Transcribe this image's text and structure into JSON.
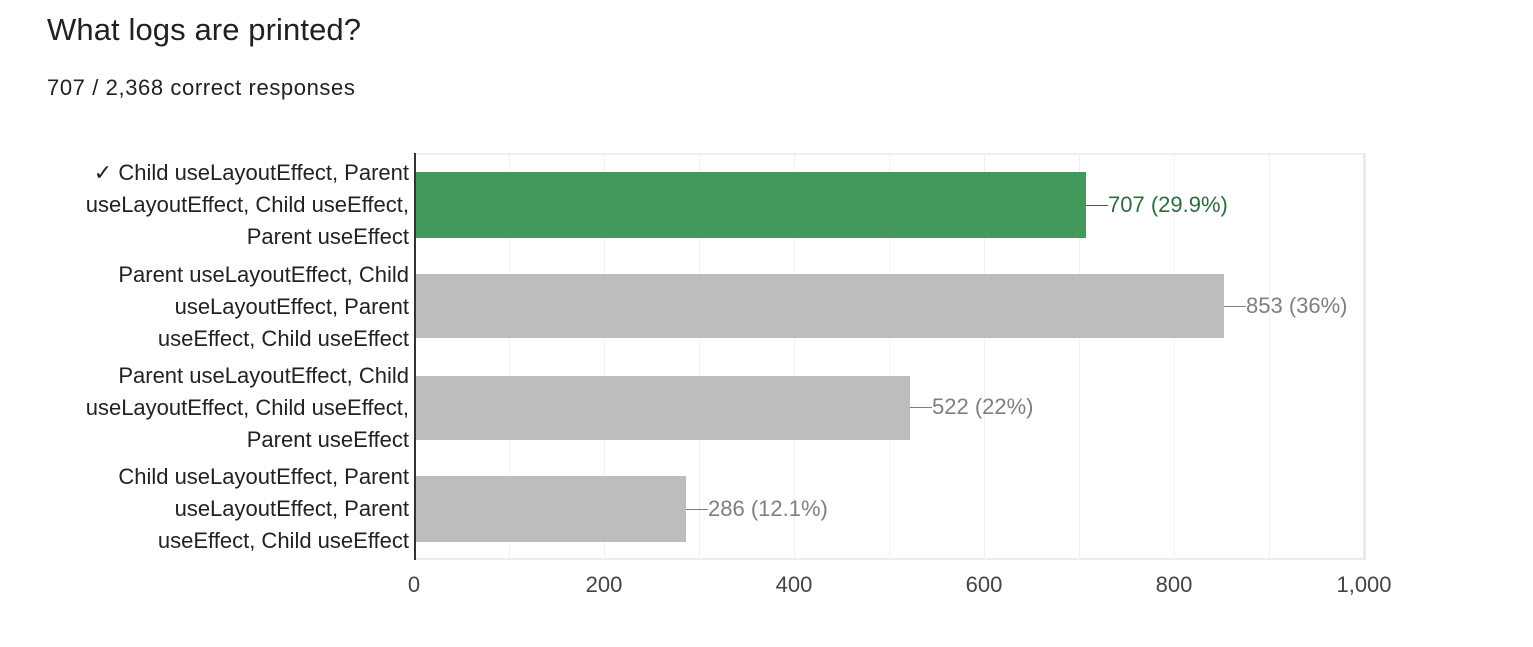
{
  "title": "What logs are printed?",
  "subtitle": "707 / 2,368 correct responses",
  "colors": {
    "correct_bar": "#43995c",
    "correct_label": "#2e6b3f",
    "incorrect_bar": "#bdbdbd",
    "incorrect_label": "#7f7f7f",
    "axis": "#333333",
    "grid": "#f0f0f0"
  },
  "chart_data": {
    "type": "bar",
    "orientation": "horizontal",
    "title": "What logs are printed?",
    "subtitle": "707 / 2,368 correct responses",
    "categories": [
      "Child useLayoutEffect, Parent useLayoutEffect, Child useEffect, Parent useEffect",
      "Parent useLayoutEffect, Child useLayoutEffect, Parent useEffect, Child useEffect",
      "Parent useLayoutEffect, Child useLayoutEffect, Child useEffect, Parent useEffect",
      "Child useLayoutEffect, Parent useLayoutEffect, Parent useEffect, Child useEffect"
    ],
    "values": [
      707,
      853,
      522,
      286
    ],
    "percentages": [
      "29.9%",
      "36%",
      "22%",
      "12.1%"
    ],
    "correct_index": 0,
    "xlabel": "",
    "ylabel": "",
    "xlim": [
      0,
      1000
    ],
    "xticks": [
      0,
      200,
      400,
      600,
      800,
      1000
    ],
    "grid": true,
    "legend": "none"
  },
  "bars": [
    {
      "lines": [
        "✓ Child useLayoutEffect, Parent",
        "useLayoutEffect, Child useEffect,",
        "Parent useEffect"
      ],
      "value": 707,
      "label": "707 (29.9%)",
      "correct": true
    },
    {
      "lines": [
        "Parent useLayoutEffect, Child",
        "useLayoutEffect, Parent",
        "useEffect, Child useEffect"
      ],
      "value": 853,
      "label": "853 (36%)",
      "correct": false
    },
    {
      "lines": [
        "Parent useLayoutEffect, Child",
        "useLayoutEffect, Child useEffect,",
        "Parent useEffect"
      ],
      "value": 522,
      "label": "522 (22%)",
      "correct": false
    },
    {
      "lines": [
        "Child useLayoutEffect, Parent",
        "useLayoutEffect, Parent",
        "useEffect, Child useEffect"
      ],
      "value": 286,
      "label": "286 (12.1%)",
      "correct": false
    }
  ],
  "xaxis": {
    "ticks": [
      "0",
      "200",
      "400",
      "600",
      "800",
      "1,000"
    ]
  }
}
